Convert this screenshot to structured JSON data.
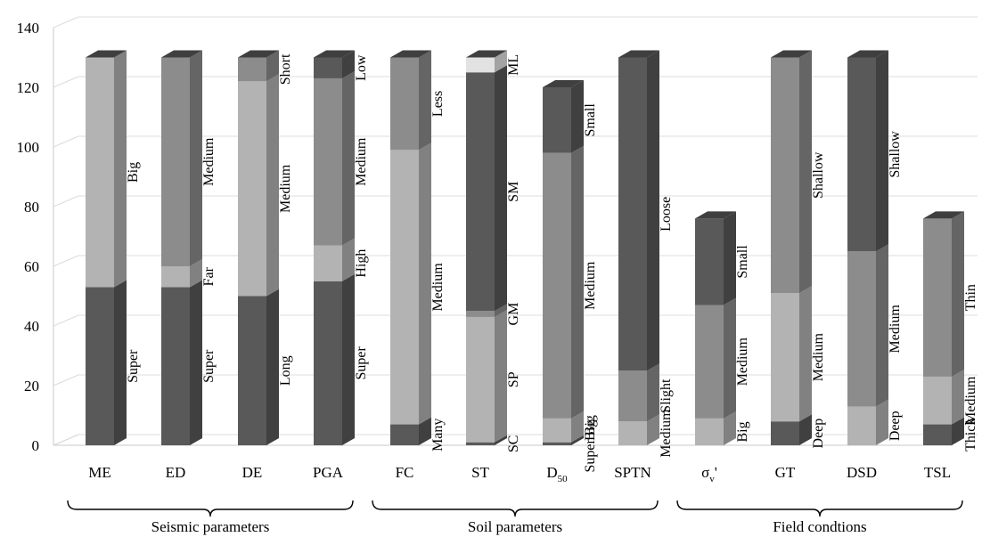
{
  "chart_data": {
    "type": "bar",
    "stacked": true,
    "ylim": [
      0,
      140
    ],
    "yticks": [
      0,
      20,
      40,
      60,
      80,
      100,
      120,
      140
    ],
    "grid": true,
    "categories": [
      {
        "label": "ME",
        "segments": [
          {
            "label": "Super",
            "value": 53,
            "color": "#595959"
          },
          {
            "label": "Big",
            "value": 77,
            "color": "#b3b3b3"
          }
        ]
      },
      {
        "label": "ED",
        "segments": [
          {
            "label": "Super",
            "value": 53,
            "color": "#595959"
          },
          {
            "label": "Far",
            "value": 7,
            "color": "#b3b3b3"
          },
          {
            "label": "Medium",
            "value": 70,
            "color": "#8c8c8c"
          }
        ]
      },
      {
        "label": "DE",
        "segments": [
          {
            "label": "Long",
            "value": 50,
            "color": "#595959"
          },
          {
            "label": "Medium",
            "value": 72,
            "color": "#b3b3b3"
          },
          {
            "label": "Short",
            "value": 8,
            "color": "#8c8c8c"
          }
        ]
      },
      {
        "label": "PGA",
        "segments": [
          {
            "label": "Super",
            "value": 55,
            "color": "#595959"
          },
          {
            "label": "High",
            "value": 12,
            "color": "#b3b3b3"
          },
          {
            "label": "Medium",
            "value": 56,
            "color": "#8c8c8c"
          },
          {
            "label": "Low",
            "value": 7,
            "color": "#595959"
          }
        ]
      },
      {
        "label": "FC",
        "segments": [
          {
            "label": "Many",
            "value": 7,
            "color": "#595959"
          },
          {
            "label": "Medium",
            "value": 92,
            "color": "#b3b3b3"
          },
          {
            "label": "Less",
            "value": 31,
            "color": "#8c8c8c"
          }
        ]
      },
      {
        "label": "ST",
        "segments": [
          {
            "label": "SC",
            "value": 1,
            "color": "#595959"
          },
          {
            "label": "SP",
            "value": 42,
            "color": "#b3b3b3"
          },
          {
            "label": "GM",
            "value": 2,
            "color": "#8c8c8c"
          },
          {
            "label": "SM",
            "value": 80,
            "color": "#595959"
          },
          {
            "label": "ML",
            "value": 5,
            "color": "#e2e2e2"
          }
        ]
      },
      {
        "label": "D50",
        "segments": [
          {
            "label": "Super Big",
            "value": 1,
            "color": "#595959"
          },
          {
            "label": "Big",
            "value": 8,
            "color": "#b3b3b3"
          },
          {
            "label": "Medium",
            "value": 89,
            "color": "#8c8c8c"
          },
          {
            "label": "Small",
            "value": 22,
            "color": "#595959"
          }
        ]
      },
      {
        "label": "SPTN",
        "segments": [
          {
            "label": "Medium",
            "value": 8,
            "color": "#b3b3b3"
          },
          {
            "label": "Slight",
            "value": 17,
            "color": "#8c8c8c"
          },
          {
            "label": "Loose",
            "value": 105,
            "color": "#595959"
          }
        ]
      },
      {
        "label": "σv'",
        "segments": [
          {
            "label": "Big",
            "value": 9,
            "color": "#b3b3b3"
          },
          {
            "label": "Medium",
            "value": 38,
            "color": "#8c8c8c"
          },
          {
            "label": "Small",
            "value": 29,
            "color": "#595959"
          }
        ]
      },
      {
        "label": "GT",
        "segments": [
          {
            "label": "Deep",
            "value": 8,
            "color": "#595959"
          },
          {
            "label": "Medium",
            "value": 43,
            "color": "#b3b3b3"
          },
          {
            "label": "Shallow",
            "value": 79,
            "color": "#8c8c8c"
          }
        ]
      },
      {
        "label": "DSD",
        "segments": [
          {
            "label": "Deep",
            "value": 13,
            "color": "#b3b3b3"
          },
          {
            "label": "Medium",
            "value": 52,
            "color": "#8c8c8c"
          },
          {
            "label": "Shallow",
            "value": 65,
            "color": "#595959"
          }
        ]
      },
      {
        "label": "TSL",
        "segments": [
          {
            "label": "Thick",
            "value": 7,
            "color": "#595959"
          },
          {
            "label": "Medium",
            "value": 16,
            "color": "#b3b3b3"
          },
          {
            "label": "Thin",
            "value": 53,
            "color": "#8c8c8c"
          }
        ]
      }
    ],
    "groups": [
      {
        "label": "Seismic parameters",
        "from": 0,
        "to": 3
      },
      {
        "label": "Soil parameters",
        "from": 4,
        "to": 7
      },
      {
        "label": "Field condtions",
        "from": 8,
        "to": 11
      }
    ]
  }
}
